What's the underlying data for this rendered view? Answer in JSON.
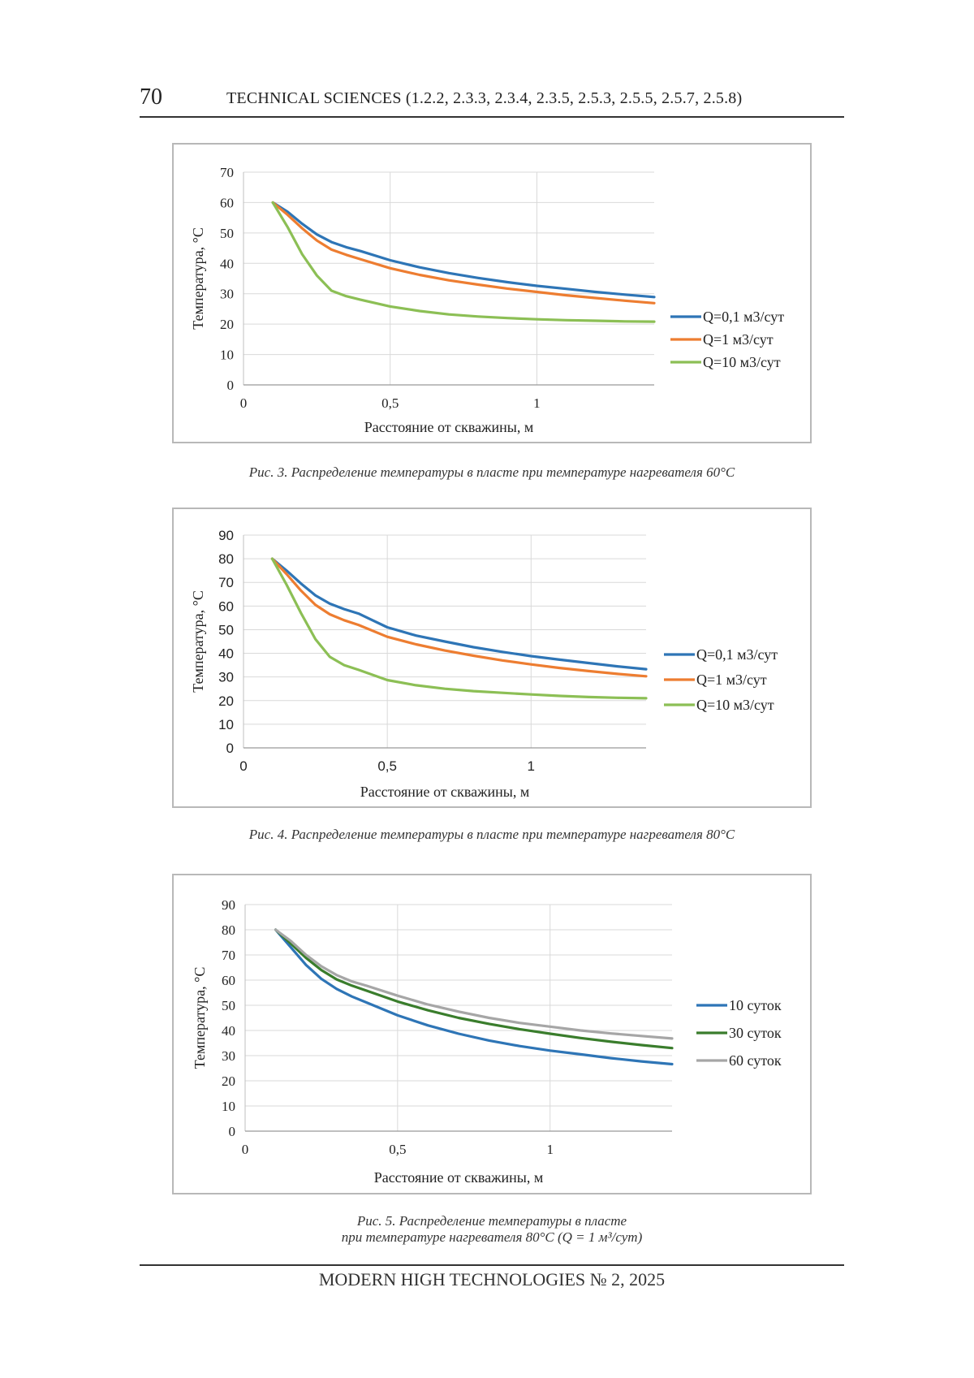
{
  "header": {
    "page_number": "70",
    "journal_title": "TECHNICAL SCIENCES (1.2.2, 2.3.3, 2.3.4, 2.3.5, 2.5.3, 2.5.5, 2.5.7, 2.5.8)"
  },
  "footer": {
    "text": "MODERN HIGH TECHNOLOGIES   № 2, 2025"
  },
  "captions": [
    {
      "lines": [
        "Рис. 3. Распределение температуры в пласте при температуре нагревателя 60°С"
      ]
    },
    {
      "lines": [
        "Рис. 4. Распределение температуры в пласте при температуре нагревателя 80°С"
      ]
    },
    {
      "lines": [
        "Рис. 5. Распределение температуры в пласте",
        "при температуре нагревателя 80°С (Q = 1 м³/сут)"
      ]
    }
  ],
  "chart_data": [
    {
      "type": "line",
      "xlabel": "Расстояние от  скважины, м",
      "ylabel": "Температура, °С",
      "x_ticks": [
        "0",
        "0,5",
        "1"
      ],
      "y_ticks": [
        "0",
        "10",
        "20",
        "30",
        "40",
        "50",
        "60",
        "70"
      ],
      "xlim": [
        0,
        1.4
      ],
      "ylim": [
        0,
        70
      ],
      "grid": "on",
      "legend": "right",
      "x": [
        0.1,
        0.15,
        0.2,
        0.25,
        0.3,
        0.35,
        0.4,
        0.5,
        0.6,
        0.7,
        0.8,
        0.9,
        1.0,
        1.1,
        1.2,
        1.3,
        1.4
      ],
      "series": [
        {
          "name": "Q=0,1 м3/сут",
          "color": "#2e75b6",
          "values": [
            60,
            57,
            53,
            49.5,
            47,
            45.3,
            44,
            41,
            38.7,
            36.8,
            35.2,
            33.8,
            32.6,
            31.6,
            30.6,
            29.7,
            28.9
          ]
        },
        {
          "name": "Q=1 м3/сут",
          "color": "#ed7d31",
          "values": [
            60,
            56,
            51.5,
            47.5,
            44.5,
            42.8,
            41.3,
            38.4,
            36.2,
            34.4,
            33,
            31.7,
            30.6,
            29.5,
            28.6,
            27.7,
            26.9
          ]
        },
        {
          "name": "Q=10 м3/сут",
          "color": "#8cbf55",
          "values": [
            60,
            52,
            43,
            36,
            31,
            29.2,
            28,
            25.8,
            24.3,
            23.2,
            22.5,
            22,
            21.6,
            21.3,
            21.1,
            20.9,
            20.8
          ]
        }
      ]
    },
    {
      "type": "line",
      "xlabel": "Расстояние от  скважины, м",
      "ylabel": "Температура, °С",
      "x_ticks": [
        "0",
        "0,5",
        "1"
      ],
      "y_ticks": [
        "0",
        "10",
        "20",
        "30",
        "40",
        "50",
        "60",
        "70",
        "80",
        "90"
      ],
      "xlim": [
        0,
        1.4
      ],
      "ylim": [
        0,
        90
      ],
      "grid": "on",
      "legend": "right",
      "x": [
        0.1,
        0.15,
        0.2,
        0.25,
        0.3,
        0.35,
        0.4,
        0.5,
        0.6,
        0.7,
        0.8,
        0.9,
        1.0,
        1.1,
        1.2,
        1.3,
        1.4
      ],
      "series": [
        {
          "name": "Q=0,1 м3/сут",
          "color": "#2e75b6",
          "values": [
            80,
            75,
            69.5,
            64.5,
            61,
            58.7,
            56.8,
            51,
            47.5,
            45,
            42.6,
            40.6,
            38.8,
            37.3,
            35.9,
            34.5,
            33.3
          ]
        },
        {
          "name": "Q=1 м3/сут",
          "color": "#ed7d31",
          "values": [
            80,
            73.5,
            66.5,
            60.5,
            56.5,
            54,
            52,
            47,
            43.8,
            41.2,
            39,
            37,
            35.3,
            33.8,
            32.5,
            31.3,
            30.3
          ]
        },
        {
          "name": "Q=10 м3/сут",
          "color": "#8cbf55",
          "values": [
            80,
            69,
            57,
            46,
            38.5,
            35,
            33,
            28.7,
            26.5,
            25,
            24,
            23.3,
            22.6,
            22,
            21.5,
            21.2,
            21
          ]
        }
      ]
    },
    {
      "type": "line",
      "xlabel": "Расстояние от скважины, м",
      "ylabel": "Температура, °С",
      "x_ticks": [
        "0",
        "0,5",
        "1"
      ],
      "y_ticks": [
        "0",
        "10",
        "20",
        "30",
        "40",
        "50",
        "60",
        "70",
        "80",
        "90"
      ],
      "xlim": [
        0,
        1.4
      ],
      "ylim": [
        0,
        90
      ],
      "grid": "on",
      "legend": "right",
      "x": [
        0.1,
        0.15,
        0.2,
        0.25,
        0.3,
        0.35,
        0.4,
        0.5,
        0.6,
        0.7,
        0.8,
        0.9,
        1.0,
        1.1,
        1.2,
        1.3,
        1.4
      ],
      "series": [
        {
          "name": "10 суток",
          "color": "#2e75b6",
          "values": [
            80,
            73,
            66,
            60.5,
            56.5,
            53.5,
            51,
            46,
            42,
            38.7,
            36,
            33.8,
            32,
            30.5,
            29,
            27.7,
            26.6
          ]
        },
        {
          "name": "30 суток",
          "color": "#3a7d2c",
          "values": [
            80,
            74.5,
            68.8,
            64,
            60.3,
            57.8,
            55.7,
            51.5,
            48,
            45,
            42.6,
            40.5,
            38.7,
            37,
            35.5,
            34.2,
            33
          ]
        },
        {
          "name": "60 суток",
          "color": "#a6a6a6",
          "values": [
            80,
            75.5,
            70,
            65.5,
            62,
            59.5,
            57.7,
            53.8,
            50.3,
            47.5,
            45,
            43,
            41.5,
            40,
            38.8,
            37.8,
            36.8
          ]
        }
      ]
    }
  ]
}
